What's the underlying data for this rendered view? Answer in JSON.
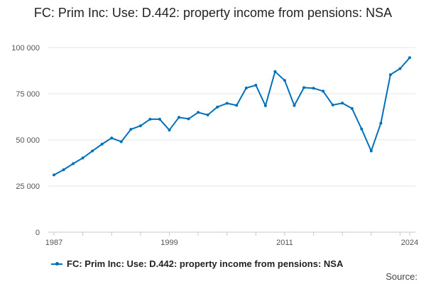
{
  "chart_data": {
    "type": "line",
    "title": "FC: Prim Inc: Use: D.442: property income from pensions: NSA",
    "xlabel": "",
    "ylabel": "",
    "x_ticks": [
      "1987",
      "1999",
      "2011",
      "2024"
    ],
    "y_ticks": [
      "0",
      "25 000",
      "50 000",
      "75 000",
      "100 000"
    ],
    "ylim": [
      0,
      100000
    ],
    "xlim": [
      1987,
      2024
    ],
    "grid": true,
    "legend_position": "bottom-left",
    "series": [
      {
        "name": "FC: Prim Inc: Use: D.442: property income from pensions: NSA",
        "color": "#0071b8",
        "x": [
          1987,
          1988,
          1989,
          1990,
          1991,
          1992,
          1993,
          1994,
          1995,
          1996,
          1997,
          1998,
          1999,
          2000,
          2001,
          2002,
          2003,
          2004,
          2005,
          2006,
          2007,
          2008,
          2009,
          2010,
          2011,
          2012,
          2013,
          2014,
          2015,
          2016,
          2017,
          2018,
          2019,
          2020,
          2021,
          2022,
          2023,
          2024
        ],
        "values": [
          31000,
          33800,
          37100,
          40200,
          44000,
          47700,
          51000,
          49000,
          55700,
          57600,
          61200,
          61200,
          55300,
          62200,
          61400,
          64900,
          63500,
          67800,
          69800,
          68700,
          78100,
          79600,
          68500,
          87000,
          82200,
          68600,
          78300,
          78000,
          76400,
          68900,
          69900,
          67000,
          55900,
          44000,
          59000,
          85300,
          88600,
          94500
        ]
      }
    ]
  },
  "source_label": "Source:"
}
